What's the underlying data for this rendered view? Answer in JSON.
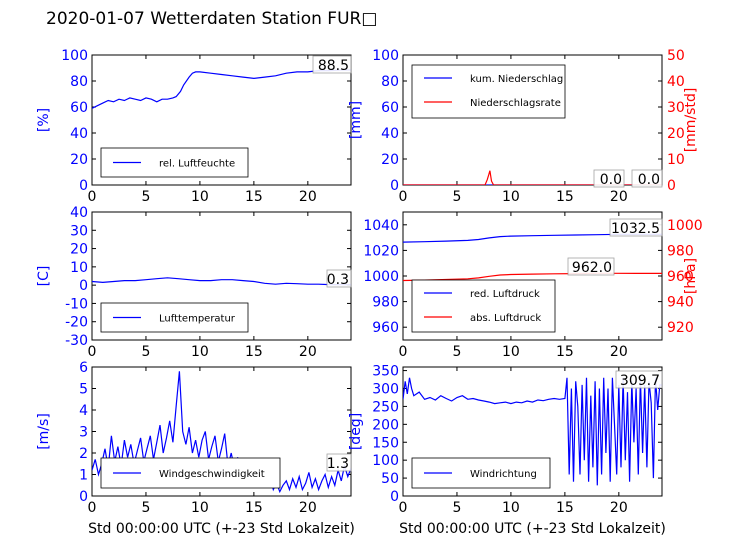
{
  "page_title": "2020-01-07 Wetterdaten Station FUR□",
  "colors": {
    "blue": "#0000ff",
    "red": "#ff0000",
    "axis": "#000000"
  },
  "chart_data": [
    {
      "id": "humidity",
      "type": "line",
      "xlim": [
        0,
        24
      ],
      "xticks": [
        0,
        5,
        10,
        15,
        20
      ],
      "ylim": [
        0,
        100
      ],
      "yticks": [
        0,
        20,
        40,
        60,
        80,
        100
      ],
      "ylabel": "[%]",
      "ylabel_color": "#0000ff",
      "latest_value": "88.5",
      "legend": {
        "placement": "lower-left",
        "entries": [
          {
            "label": "rel. Luftfeuchte",
            "color": "#0000ff"
          }
        ]
      },
      "series": [
        {
          "name": "rel. Luftfeuchte",
          "color": "#0000ff",
          "axis": "left",
          "x": [
            0,
            0.5,
            1,
            1.5,
            2,
            2.5,
            3,
            3.5,
            4,
            4.5,
            5,
            5.5,
            6,
            6.5,
            7,
            7.5,
            7.8,
            8.2,
            8.5,
            9,
            9.3,
            9.6,
            10,
            11,
            12,
            13,
            14,
            15,
            16,
            17,
            18,
            19,
            20,
            21,
            22,
            23,
            24
          ],
          "y": [
            59,
            61,
            63,
            65,
            64,
            66,
            65,
            67,
            66,
            65,
            67,
            66,
            64,
            66,
            66,
            67,
            68,
            72,
            77,
            83,
            86,
            87,
            87,
            86,
            85,
            84,
            83,
            82,
            83,
            84,
            86,
            87,
            87,
            88,
            88,
            88.5,
            88.5
          ]
        }
      ]
    },
    {
      "id": "precipitation",
      "type": "line",
      "xlim": [
        0,
        24
      ],
      "xticks": [
        0,
        5,
        10,
        15,
        20
      ],
      "ylim": [
        0,
        100
      ],
      "yticks": [
        0,
        20,
        40,
        60,
        80,
        100
      ],
      "ylabel": "[mm]",
      "ylabel_color": "#0000ff",
      "y2lim": [
        0,
        50
      ],
      "y2ticks": [
        0,
        10,
        20,
        30,
        40,
        50
      ],
      "y2label": "[mm/std]",
      "y2label_color": "#ff0000",
      "latest_value": "0.0",
      "latest_value_2": "0.0",
      "legend": {
        "placement": "upper-left",
        "entries": [
          {
            "label": "kum. Niederschlag",
            "color": "#0000ff"
          },
          {
            "label": "Niederschlagsrate",
            "color": "#ff0000"
          }
        ]
      },
      "series": [
        {
          "name": "kum. Niederschlag",
          "color": "#0000ff",
          "axis": "left",
          "x": [
            0,
            24
          ],
          "y": [
            0,
            0
          ]
        },
        {
          "name": "Niederschlagsrate",
          "color": "#ff0000",
          "axis": "right",
          "x": [
            0,
            7.6,
            7.8,
            7.95,
            8.05,
            8.2,
            8.4,
            24
          ],
          "y": [
            0,
            0,
            2,
            4,
            5.5,
            1.5,
            0,
            0
          ]
        }
      ]
    },
    {
      "id": "temperature",
      "type": "line",
      "xlim": [
        0,
        24
      ],
      "xticks": [
        0,
        5,
        10,
        15,
        20
      ],
      "ylim": [
        -30,
        40
      ],
      "yticks": [
        -30,
        -20,
        -10,
        0,
        10,
        20,
        30,
        40
      ],
      "ylabel": "[C]",
      "ylabel_color": "#0000ff",
      "latest_value": "0.3",
      "legend": {
        "placement": "lower-left",
        "entries": [
          {
            "label": "Lufttemperatur",
            "color": "#0000ff"
          }
        ]
      },
      "series": [
        {
          "name": "Lufttemperatur",
          "color": "#0000ff",
          "axis": "left",
          "x": [
            0,
            1,
            2,
            3,
            4,
            5,
            6,
            7,
            8,
            9,
            10,
            11,
            12,
            13,
            14,
            15,
            16,
            17,
            18,
            19,
            20,
            21,
            22,
            23,
            24
          ],
          "y": [
            2,
            1.5,
            2,
            2.5,
            2.5,
            3,
            3.5,
            4,
            3.5,
            3,
            2.5,
            2.5,
            3,
            3,
            2.5,
            2,
            1,
            0.5,
            1,
            0.8,
            0.5,
            0.5,
            0.3,
            0.3,
            0.3
          ]
        }
      ]
    },
    {
      "id": "pressure",
      "type": "line",
      "xlim": [
        0,
        24
      ],
      "xticks": [
        0,
        5,
        10,
        15,
        20
      ],
      "ylim": [
        950,
        1050
      ],
      "yticks": [
        960,
        980,
        1000,
        1020,
        1040
      ],
      "ylabel": "",
      "ylabel_color": "#0000ff",
      "y2lim": [
        910,
        1010
      ],
      "y2ticks": [
        920,
        940,
        960,
        980,
        1000
      ],
      "y2label": "[hPa]",
      "y2label_color": "#ff0000",
      "latest_value": "1032.5",
      "latest_value_2": "962.0",
      "legend": {
        "placement": "lower-left",
        "entries": [
          {
            "label": "red. Luftdruck",
            "color": "#0000ff"
          },
          {
            "label": "abs. Luftdruck",
            "color": "#ff0000"
          }
        ]
      },
      "series": [
        {
          "name": "red. Luftdruck",
          "color": "#0000ff",
          "axis": "left",
          "x": [
            0,
            2,
            4,
            6,
            7,
            8,
            9,
            10,
            12,
            14,
            16,
            18,
            20,
            22,
            24
          ],
          "y": [
            1026.5,
            1026.8,
            1027.3,
            1027.8,
            1028.5,
            1029.8,
            1030.8,
            1031.2,
            1031.5,
            1031.8,
            1032,
            1032.3,
            1032.6,
            1032.5,
            1032.5
          ]
        },
        {
          "name": "abs. Luftdruck",
          "color": "#ff0000",
          "axis": "right",
          "x": [
            0,
            2,
            4,
            6,
            7,
            8,
            9,
            10,
            12,
            14,
            16,
            18,
            20,
            22,
            24
          ],
          "y": [
            956.5,
            956.8,
            957.3,
            957.8,
            958.5,
            959.8,
            960.8,
            961.2,
            961.5,
            961.7,
            961.9,
            962.1,
            962.1,
            962,
            962
          ]
        }
      ]
    },
    {
      "id": "wind_speed",
      "type": "line",
      "xlim": [
        0,
        24
      ],
      "xticks": [
        0,
        5,
        10,
        15,
        20
      ],
      "ylim": [
        0,
        6
      ],
      "yticks": [
        0,
        1,
        2,
        3,
        4,
        5,
        6
      ],
      "ylabel": "[m/s]",
      "ylabel_color": "#0000ff",
      "xlabel": "Std 00:00:00 UTC (+-23 Std Lokalzeit)",
      "latest_value": "1.3",
      "legend": {
        "placement": "lower-left",
        "entries": [
          {
            "label": "Windgeschwindigkeit",
            "color": "#0000ff"
          }
        ]
      },
      "series": [
        {
          "name": "Windgeschwindigkeit",
          "color": "#0000ff",
          "axis": "left",
          "x": [
            0,
            0.3,
            0.6,
            0.9,
            1.2,
            1.5,
            1.8,
            2.1,
            2.4,
            2.7,
            3,
            3.3,
            3.6,
            3.9,
            4.2,
            4.5,
            4.8,
            5.1,
            5.4,
            5.7,
            6,
            6.3,
            6.6,
            6.9,
            7.2,
            7.5,
            7.8,
            8.1,
            8.4,
            8.7,
            9,
            9.3,
            9.6,
            9.9,
            10.2,
            10.5,
            10.8,
            11.1,
            11.4,
            11.7,
            12,
            12.3,
            12.6,
            12.9,
            13.2,
            13.5,
            13.8,
            14.1,
            14.4,
            14.7,
            15,
            15.3,
            15.6,
            15.9,
            16.2,
            16.5,
            16.8,
            17.1,
            17.4,
            17.7,
            18,
            18.3,
            18.6,
            18.9,
            19.2,
            19.5,
            19.8,
            20.1,
            20.4,
            20.7,
            21,
            21.3,
            21.6,
            21.9,
            22.2,
            22.5,
            22.8,
            23.1,
            23.4,
            23.7,
            24
          ],
          "y": [
            1.2,
            1.7,
            1.0,
            1.5,
            2.2,
            1.3,
            2.8,
            1.6,
            2.3,
            1.4,
            2.6,
            1.8,
            2.4,
            1.5,
            2.1,
            2.7,
            1.6,
            2.2,
            2.8,
            1.7,
            2.5,
            3.3,
            2.0,
            2.7,
            3.5,
            2.5,
            4.2,
            5.8,
            3.0,
            2.4,
            3.2,
            2.0,
            2.6,
            1.8,
            2.6,
            3.0,
            1.7,
            2.3,
            2.8,
            1.6,
            2.2,
            2.9,
            1.4,
            2.0,
            1.3,
            1.8,
            1.0,
            1.5,
            0.8,
            1.3,
            0.9,
            1.6,
            1.0,
            1.4,
            0.5,
            0.9,
            0.3,
            0.6,
            0.2,
            0.5,
            0.7,
            0.3,
            0.8,
            0.4,
            0.9,
            0.3,
            0.6,
            1.1,
            0.4,
            0.8,
            0.3,
            0.7,
            1.0,
            0.4,
            0.9,
            0.5,
            1.2,
            0.7,
            1.4,
            0.9,
            1.3
          ]
        }
      ]
    },
    {
      "id": "wind_direction",
      "type": "line",
      "xlim": [
        0,
        24
      ],
      "xticks": [
        0,
        5,
        10,
        15,
        20
      ],
      "ylim": [
        0,
        360
      ],
      "yticks": [
        0,
        50,
        100,
        150,
        200,
        250,
        300,
        350
      ],
      "ylabel": "[deg]",
      "ylabel_color": "#0000ff",
      "xlabel": "Std 00:00:00 UTC (+-23 Std Lokalzeit)",
      "latest_value": "309.7",
      "legend": {
        "placement": "lower-left",
        "entries": [
          {
            "label": "Windrichtung",
            "color": "#0000ff"
          }
        ]
      },
      "series": [
        {
          "name": "Windrichtung",
          "color": "#0000ff",
          "axis": "left",
          "x": [
            0,
            0.2,
            0.4,
            0.6,
            0.8,
            1,
            1.5,
            2,
            2.5,
            3,
            3.5,
            4,
            4.5,
            5,
            5.5,
            6,
            6.5,
            7,
            7.5,
            8,
            8.5,
            9,
            9.5,
            10,
            10.5,
            11,
            11.5,
            12,
            12.5,
            13,
            13.5,
            14,
            14.5,
            15,
            15.2,
            15.4,
            15.6,
            15.8,
            16,
            16.2,
            16.4,
            16.6,
            16.8,
            17,
            17.2,
            17.4,
            17.6,
            17.8,
            18,
            18.2,
            18.4,
            18.6,
            18.8,
            19,
            19.2,
            19.4,
            19.6,
            19.8,
            20,
            20.2,
            20.4,
            20.6,
            20.8,
            21,
            21.2,
            21.4,
            21.6,
            21.8,
            22,
            22.2,
            22.4,
            22.6,
            22.8,
            23,
            23.2,
            23.4,
            23.6,
            23.8,
            24
          ],
          "y": [
            270,
            320,
            285,
            330,
            300,
            280,
            290,
            270,
            275,
            268,
            280,
            272,
            265,
            275,
            280,
            270,
            272,
            268,
            265,
            262,
            258,
            260,
            262,
            258,
            262,
            260,
            265,
            262,
            268,
            266,
            270,
            272,
            270,
            272,
            330,
            60,
            300,
            40,
            320,
            250,
            60,
            310,
            100,
            330,
            40,
            280,
            80,
            320,
            30,
            300,
            60,
            330,
            120,
            300,
            40,
            330,
            200,
            60,
            310,
            80,
            330,
            100,
            290,
            40,
            320,
            150,
            300,
            60,
            330,
            120,
            310,
            80,
            320,
            260,
            50,
            330,
            240,
            310,
            309.7
          ]
        }
      ]
    }
  ]
}
